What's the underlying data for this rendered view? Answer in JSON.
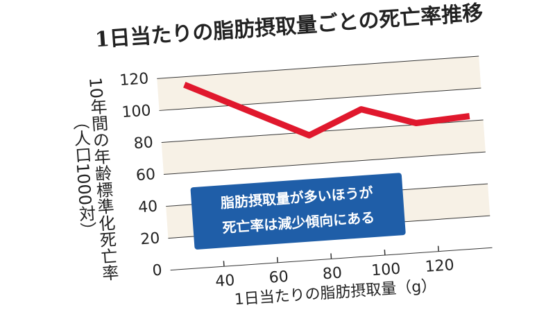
{
  "chart_data": {
    "type": "line",
    "title": "1日当たりの脂肪摂取量ごとの死亡率推移",
    "ylabel": "10年間の年齢標準化死亡率",
    "ylabel_note": "（人口1000対）",
    "xlabel": "1日当たりの脂肪摂取量（g）",
    "annotation": [
      "脂肪摂取量が多いほうが",
      "死亡率は減少傾向にある"
    ],
    "x": [
      30,
      75,
      95,
      115,
      135
    ],
    "series": [
      {
        "name": "死亡率",
        "color": "#e0182d",
        "values": [
          115,
          78,
          92,
          81,
          83
        ]
      }
    ],
    "xlim": [
      20,
      140
    ],
    "xticks": [
      40,
      60,
      80,
      100,
      120
    ],
    "ylim": [
      0,
      130
    ],
    "yticks": [
      0,
      20,
      40,
      60,
      80,
      100,
      120
    ],
    "grid": true,
    "band_color": "#f7f1e6"
  }
}
